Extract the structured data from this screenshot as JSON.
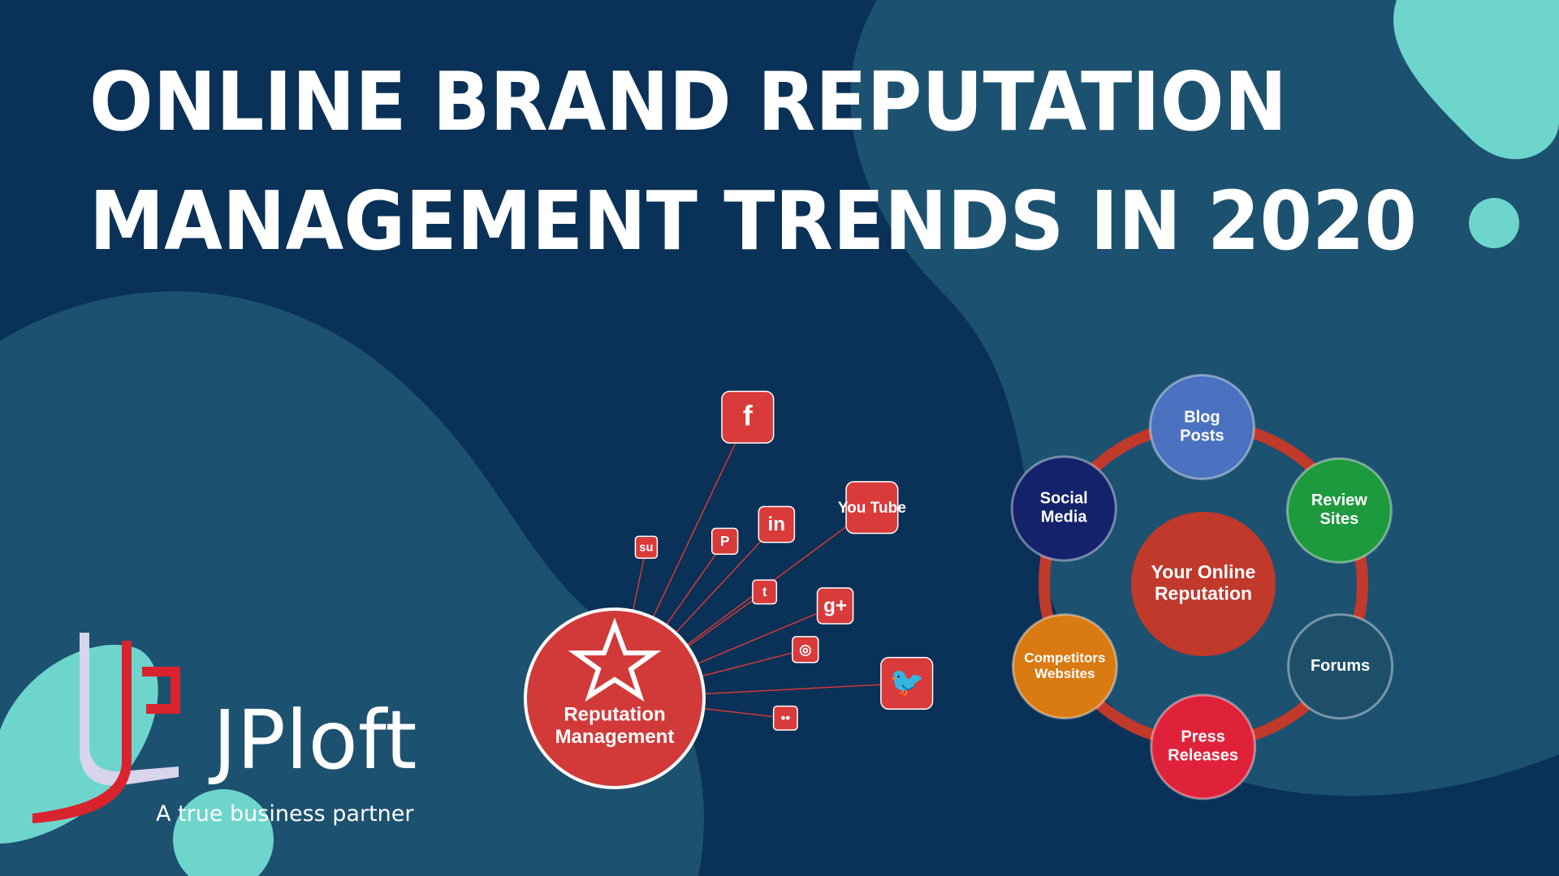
{
  "header": {
    "title_lines": [
      "ONLINE BRAND REPUTATION",
      "MANAGEMENT TRENDS IN 2020"
    ]
  },
  "left_diagram": {
    "center_lines": [
      "Reputation",
      "Management"
    ],
    "icons": [
      {
        "label": "f"
      },
      {
        "label": "You Tube"
      },
      {
        "label": "in"
      },
      {
        "label": "P"
      },
      {
        "label": "su"
      },
      {
        "label": "t"
      },
      {
        "label": "g+"
      },
      {
        "label": "◎"
      },
      {
        "label": "🐦"
      },
      {
        "label": "••"
      }
    ]
  },
  "right_diagram": {
    "center_lines": [
      "Your Online",
      "Reputation"
    ],
    "nodes": [
      {
        "lines": [
          "Blog",
          "Posts"
        ]
      },
      {
        "lines": [
          "Review",
          "Sites"
        ]
      },
      {
        "lines": [
          "Forums"
        ]
      },
      {
        "lines": [
          "Press",
          "Releases"
        ]
      },
      {
        "lines": [
          "Competitors",
          "Websites"
        ]
      },
      {
        "lines": [
          "Social",
          "Media"
        ]
      }
    ]
  },
  "logo": {
    "name": "JPloft",
    "tagline": "A true business partner"
  }
}
